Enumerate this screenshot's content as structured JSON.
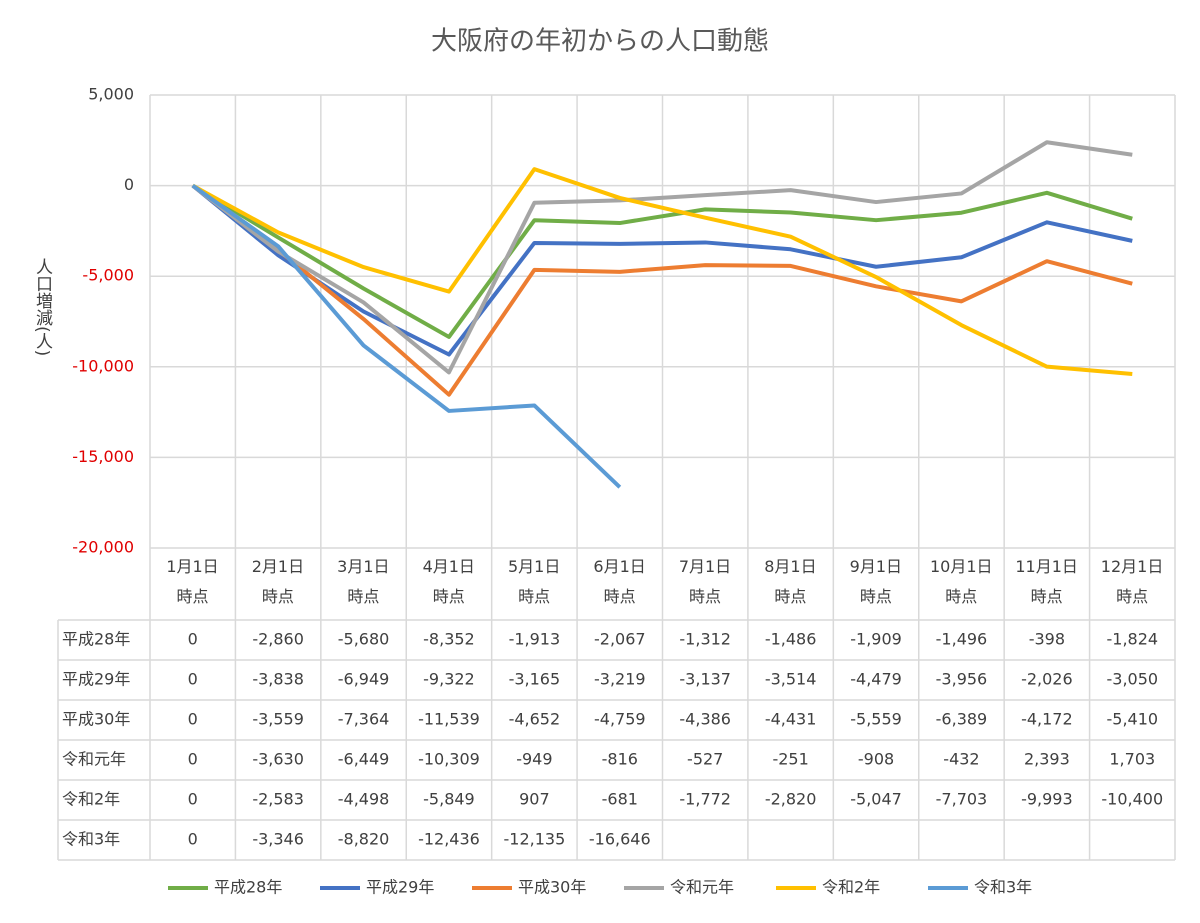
{
  "chart_data": {
    "type": "line",
    "title": "大阪府の年初からの人口動態",
    "y_label": "人口増減(人)",
    "categories": [
      "1月1日\n時点",
      "2月1日\n時点",
      "3月1日\n時点",
      "4月1日\n時点",
      "5月1日\n時点",
      "6月1日\n時点",
      "7月1日\n時点",
      "8月1日\n時点",
      "9月1日\n時点",
      "10月1日\n時点",
      "11月1日\n時点",
      "12月1日\n時点"
    ],
    "ylim": [
      -20000,
      5000
    ],
    "yticks": [
      {
        "value": -20000,
        "label": "-20,000"
      },
      {
        "value": -15000,
        "label": "-15,000"
      },
      {
        "value": -10000,
        "label": "-10,000"
      },
      {
        "value": -5000,
        "label": "-5,000"
      },
      0,
      {
        "value": 5000,
        "label": "5,000"
      }
    ],
    "grid": true,
    "legend": "bottom",
    "series": [
      {
        "name": "平成28年",
        "color": "#70ad47",
        "values": [
          0,
          -2860,
          -5680,
          -8352,
          -1913,
          -2067,
          -1312,
          -1486,
          -1909,
          -1496,
          -398,
          -1824
        ],
        "value_labels": [
          "0",
          "-2,860",
          "-5,680",
          "-8,352",
          "-1,913",
          "-2,067",
          "-1,312",
          "-1,486",
          "-1,909",
          "-1,496",
          "-398",
          "-1,824"
        ]
      },
      {
        "name": "平成29年",
        "color": "#4472c4",
        "values": [
          0,
          -3838,
          -6949,
          -9322,
          -3165,
          -3219,
          -3137,
          -3514,
          -4479,
          -3956,
          -2026,
          -3050
        ],
        "value_labels": [
          "0",
          "-3,838",
          "-6,949",
          "-9,322",
          "-3,165",
          "-3,219",
          "-3,137",
          "-3,514",
          "-4,479",
          "-3,956",
          "-2,026",
          "-3,050"
        ]
      },
      {
        "name": "平成30年",
        "color": "#ed7d31",
        "values": [
          0,
          -3559,
          -7364,
          -11539,
          -4652,
          -4759,
          -4386,
          -4431,
          -5559,
          -6389,
          -4172,
          -5410
        ],
        "value_labels": [
          "0",
          "-3,559",
          "-7,364",
          "-11,539",
          "-4,652",
          "-4,759",
          "-4,386",
          "-4,431",
          "-5,559",
          "-6,389",
          "-4,172",
          "-5,410"
        ]
      },
      {
        "name": "令和元年",
        "color": "#a5a5a5",
        "values": [
          0,
          -3630,
          -6449,
          -10309,
          -949,
          -816,
          -527,
          -251,
          -908,
          -432,
          2393,
          1703
        ],
        "value_labels": [
          "0",
          "-3,630",
          "-6,449",
          "-10,309",
          "-949",
          "-816",
          "-527",
          "-251",
          "-908",
          "-432",
          "2,393",
          "1,703"
        ]
      },
      {
        "name": "令和2年",
        "color": "#ffc000",
        "values": [
          0,
          -2583,
          -4498,
          -5849,
          907,
          -681,
          -1772,
          -2820,
          -5047,
          -7703,
          -9993,
          -10400
        ],
        "value_labels": [
          "0",
          "-2,583",
          "-4,498",
          "-5,849",
          "907",
          "-681",
          "-1,772",
          "-2,820",
          "-5,047",
          "-7,703",
          "-9,993",
          "-10,400"
        ]
      },
      {
        "name": "令和3年",
        "color": "#5b9bd5",
        "values": [
          0,
          -3346,
          -8820,
          -12436,
          -12135,
          -16646,
          null,
          null,
          null,
          null,
          null,
          null
        ],
        "value_labels": [
          "0",
          "-3,346",
          "-8,820",
          "-12,436",
          "-12,135",
          "-16,646",
          null,
          null,
          null,
          null,
          null,
          null
        ]
      }
    ]
  }
}
